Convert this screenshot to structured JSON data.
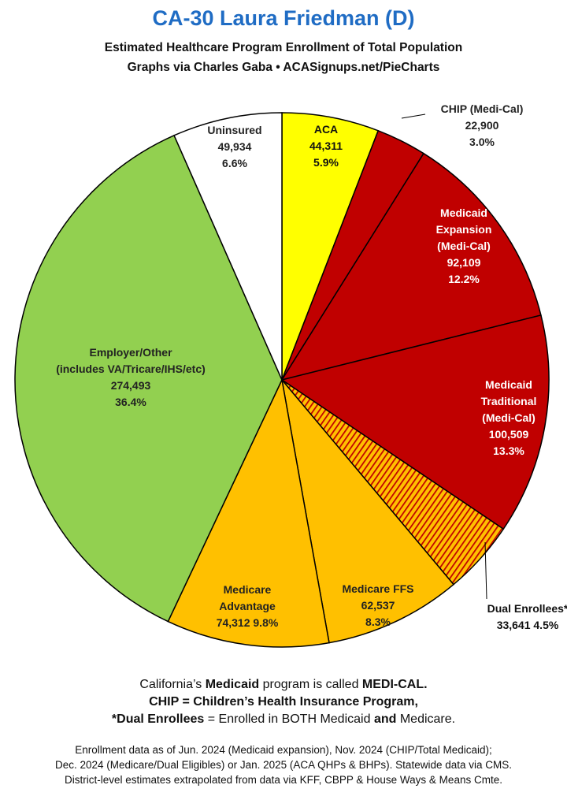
{
  "chart_data": {
    "type": "pie",
    "title": "CA-30 Laura Friedman (D)",
    "subtitle": "Estimated Healthcare Program Enrollment of Total Population",
    "credit": "Graphs via Charles Gaba   •   ACASignups.net/PieCharts",
    "slices": [
      {
        "label_lines": [
          "ACA"
        ],
        "value": 44311,
        "value_text": "44,311",
        "percent_text": "5.9%",
        "color": "#ffff00"
      },
      {
        "label_lines": [
          "CHIP (Medi-Cal)"
        ],
        "value": 22900,
        "value_text": "22,900",
        "percent_text": "3.0%",
        "color": "#c00000"
      },
      {
        "label_lines": [
          "Medicaid",
          "Expansion",
          "(Medi-Cal)"
        ],
        "value": 92109,
        "value_text": "92,109",
        "percent_text": "12.2%",
        "color": "#c00000"
      },
      {
        "label_lines": [
          "Medicaid",
          "Traditional",
          "(Medi-Cal)"
        ],
        "value": 100509,
        "value_text": "100,509",
        "percent_text": "13.3%",
        "color": "#c00000"
      },
      {
        "label_lines": [
          "Dual Enrollees*"
        ],
        "value": 33641,
        "value_text": "33,641",
        "percent_text": "4.5%",
        "color": "#e07020",
        "pattern": "hatched"
      },
      {
        "label_lines": [
          "Medicare FFS"
        ],
        "value": 62537,
        "value_text": "62,537",
        "percent_text": "8.3%",
        "color": "#ffc000"
      },
      {
        "label_lines": [
          "Medicare",
          "Advantage"
        ],
        "value": 74312,
        "value_text": "74,312",
        "percent_text": "9.8%",
        "color": "#ffc000"
      },
      {
        "label_lines": [
          "Employer/Other",
          "(includes VA/Tricare/IHS/etc)"
        ],
        "value": 274493,
        "value_text": "274,493",
        "percent_text": "36.4%",
        "color": "#92d050"
      },
      {
        "label_lines": [
          "Uninsured"
        ],
        "value": 49934,
        "value_text": "49,934",
        "percent_text": "6.6%",
        "color": "#ffffff"
      }
    ]
  },
  "notes": {
    "line1_pre": "California’s ",
    "line1_b1": "Medicaid",
    "line1_mid": " program is called ",
    "line1_b2": "MEDI-CAL.",
    "line2": "CHIP = Children’s Health Insurance Program,",
    "line3_b1": "*Dual Enrollees",
    "line3_mid": " = Enrolled in BOTH Medicaid ",
    "line3_b2": "and",
    "line3_post": " Medicare."
  },
  "footer": {
    "line1": "Enrollment data as of Jun. 2024 (Medicaid expansion), Nov. 2024 (CHIP/Total Medicaid);",
    "line2": "Dec. 2024 (Medicare/Dual Eligibles) or Jan. 2025 (ACA QHPs & BHPs). Statewide data via CMS.",
    "line3": "District-level estimates extrapolated from data via KFF, CBPP & House Ways & Means Cmte."
  }
}
